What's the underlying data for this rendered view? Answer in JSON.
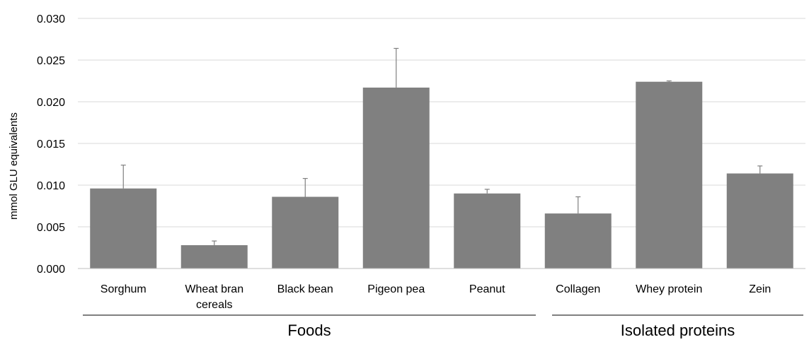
{
  "chart_data": {
    "type": "bar",
    "title": "",
    "xlabel": "",
    "ylabel": "mmol GLU equivalents",
    "ylim": [
      0,
      0.03
    ],
    "yticks": [
      "0.000",
      "0.005",
      "0.010",
      "0.015",
      "0.020",
      "0.025",
      "0.030"
    ],
    "grid": true,
    "categories": [
      [
        "Sorghum"
      ],
      [
        "Wheat bran",
        "cereals"
      ],
      [
        "Black bean"
      ],
      [
        "Pigeon pea"
      ],
      [
        "Peanut"
      ],
      [
        "Collagen"
      ],
      [
        "Whey protein"
      ],
      [
        "Zein"
      ]
    ],
    "values": [
      0.0096,
      0.0028,
      0.0086,
      0.0217,
      0.009,
      0.0066,
      0.0224,
      0.0114
    ],
    "error_upper": [
      0.0124,
      0.0033,
      0.0108,
      0.0264,
      0.0095,
      0.0086,
      0.0225,
      0.0123
    ],
    "groups": [
      {
        "label": "Foods",
        "start": 0,
        "end": 4
      },
      {
        "label": "Isolated proteins",
        "start": 5,
        "end": 7
      }
    ],
    "colors": {
      "bar": "#808080",
      "grid": "#d9d9d9",
      "axis": "#bfbfbf",
      "error": "#808080",
      "bracket": "#000000"
    }
  }
}
